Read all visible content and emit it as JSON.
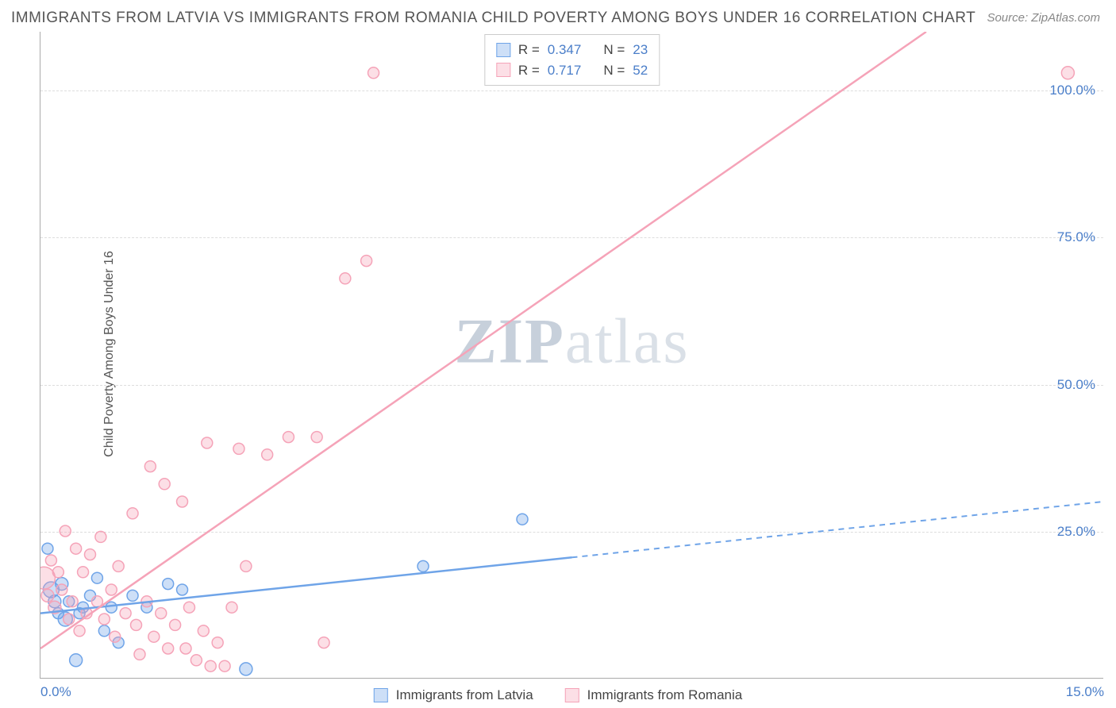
{
  "title": "IMMIGRANTS FROM LATVIA VS IMMIGRANTS FROM ROMANIA CHILD POVERTY AMONG BOYS UNDER 16 CORRELATION CHART",
  "source": "Source: ZipAtlas.com",
  "ylabel": "Child Poverty Among Boys Under 16",
  "watermark_zip": "ZIP",
  "watermark_atlas": "atlas",
  "chart": {
    "type": "scatter",
    "background_color": "#ffffff",
    "grid_color": "#dddddd",
    "axis_color": "#aaaaaa",
    "tick_color": "#4a7ec9",
    "xlim": [
      0,
      15
    ],
    "ylim": [
      0,
      110
    ],
    "xticks": [
      {
        "pos": 0,
        "label": "0.0%",
        "align": "left"
      },
      {
        "pos": 15,
        "label": "15.0%",
        "align": "right"
      }
    ],
    "yticks": [
      {
        "pos": 25,
        "label": "25.0%"
      },
      {
        "pos": 50,
        "label": "50.0%"
      },
      {
        "pos": 75,
        "label": "75.0%"
      },
      {
        "pos": 100,
        "label": "100.0%"
      }
    ],
    "grid_y": [
      25,
      50,
      75,
      100
    ],
    "series": [
      {
        "name": "Immigrants from Latvia",
        "color": "#6fa4e8",
        "fill": "rgba(111,164,232,0.35)",
        "R": "0.347",
        "N": "23",
        "trend": {
          "x1": 0,
          "y1": 11,
          "x2": 15,
          "y2": 30,
          "solid_until_x": 7.5
        },
        "points": [
          {
            "x": 0.1,
            "y": 22,
            "r": 7
          },
          {
            "x": 0.15,
            "y": 15,
            "r": 10
          },
          {
            "x": 0.2,
            "y": 13,
            "r": 8
          },
          {
            "x": 0.25,
            "y": 11,
            "r": 7
          },
          {
            "x": 0.3,
            "y": 16,
            "r": 8
          },
          {
            "x": 0.35,
            "y": 10,
            "r": 9
          },
          {
            "x": 0.4,
            "y": 13,
            "r": 7
          },
          {
            "x": 0.5,
            "y": 3,
            "r": 8
          },
          {
            "x": 0.55,
            "y": 11,
            "r": 7
          },
          {
            "x": 0.6,
            "y": 12,
            "r": 7
          },
          {
            "x": 0.7,
            "y": 14,
            "r": 7
          },
          {
            "x": 0.8,
            "y": 17,
            "r": 7
          },
          {
            "x": 0.9,
            "y": 8,
            "r": 7
          },
          {
            "x": 1.0,
            "y": 12,
            "r": 7
          },
          {
            "x": 1.1,
            "y": 6,
            "r": 7
          },
          {
            "x": 1.3,
            "y": 14,
            "r": 7
          },
          {
            "x": 1.5,
            "y": 12,
            "r": 7
          },
          {
            "x": 1.8,
            "y": 16,
            "r": 7
          },
          {
            "x": 2.0,
            "y": 15,
            "r": 7
          },
          {
            "x": 2.9,
            "y": 1.5,
            "r": 8
          },
          {
            "x": 5.4,
            "y": 19,
            "r": 7
          },
          {
            "x": 6.8,
            "y": 27,
            "r": 7
          }
        ]
      },
      {
        "name": "Immigrants from Romania",
        "color": "#f5a3b8",
        "fill": "rgba(245,163,184,0.35)",
        "R": "0.717",
        "N": "52",
        "trend": {
          "x1": 0,
          "y1": 5,
          "x2": 12.5,
          "y2": 110,
          "solid_until_x": 15
        },
        "points": [
          {
            "x": 0.05,
            "y": 17,
            "r": 14
          },
          {
            "x": 0.1,
            "y": 14,
            "r": 8
          },
          {
            "x": 0.15,
            "y": 20,
            "r": 7
          },
          {
            "x": 0.2,
            "y": 12,
            "r": 8
          },
          {
            "x": 0.25,
            "y": 18,
            "r": 7
          },
          {
            "x": 0.3,
            "y": 15,
            "r": 7
          },
          {
            "x": 0.35,
            "y": 25,
            "r": 7
          },
          {
            "x": 0.4,
            "y": 10,
            "r": 7
          },
          {
            "x": 0.45,
            "y": 13,
            "r": 7
          },
          {
            "x": 0.5,
            "y": 22,
            "r": 7
          },
          {
            "x": 0.55,
            "y": 8,
            "r": 7
          },
          {
            "x": 0.6,
            "y": 18,
            "r": 7
          },
          {
            "x": 0.65,
            "y": 11,
            "r": 7
          },
          {
            "x": 0.7,
            "y": 21,
            "r": 7
          },
          {
            "x": 0.8,
            "y": 13,
            "r": 7
          },
          {
            "x": 0.85,
            "y": 24,
            "r": 7
          },
          {
            "x": 0.9,
            "y": 10,
            "r": 7
          },
          {
            "x": 1.0,
            "y": 15,
            "r": 7
          },
          {
            "x": 1.05,
            "y": 7,
            "r": 7
          },
          {
            "x": 1.1,
            "y": 19,
            "r": 7
          },
          {
            "x": 1.2,
            "y": 11,
            "r": 7
          },
          {
            "x": 1.3,
            "y": 28,
            "r": 7
          },
          {
            "x": 1.35,
            "y": 9,
            "r": 7
          },
          {
            "x": 1.4,
            "y": 4,
            "r": 7
          },
          {
            "x": 1.5,
            "y": 13,
            "r": 7
          },
          {
            "x": 1.55,
            "y": 36,
            "r": 7
          },
          {
            "x": 1.6,
            "y": 7,
            "r": 7
          },
          {
            "x": 1.7,
            "y": 11,
            "r": 7
          },
          {
            "x": 1.75,
            "y": 33,
            "r": 7
          },
          {
            "x": 1.8,
            "y": 5,
            "r": 7
          },
          {
            "x": 1.9,
            "y": 9,
            "r": 7
          },
          {
            "x": 2.0,
            "y": 30,
            "r": 7
          },
          {
            "x": 2.05,
            "y": 5,
            "r": 7
          },
          {
            "x": 2.1,
            "y": 12,
            "r": 7
          },
          {
            "x": 2.2,
            "y": 3,
            "r": 7
          },
          {
            "x": 2.3,
            "y": 8,
            "r": 7
          },
          {
            "x": 2.35,
            "y": 40,
            "r": 7
          },
          {
            "x": 2.4,
            "y": 2,
            "r": 7
          },
          {
            "x": 2.5,
            "y": 6,
            "r": 7
          },
          {
            "x": 2.6,
            "y": 2,
            "r": 7
          },
          {
            "x": 2.7,
            "y": 12,
            "r": 7
          },
          {
            "x": 2.8,
            "y": 39,
            "r": 7
          },
          {
            "x": 2.9,
            "y": 19,
            "r": 7
          },
          {
            "x": 3.2,
            "y": 38,
            "r": 7
          },
          {
            "x": 3.5,
            "y": 41,
            "r": 7
          },
          {
            "x": 3.9,
            "y": 41,
            "r": 7
          },
          {
            "x": 4.0,
            "y": 6,
            "r": 7
          },
          {
            "x": 4.3,
            "y": 68,
            "r": 7
          },
          {
            "x": 4.6,
            "y": 71,
            "r": 7
          },
          {
            "x": 4.7,
            "y": 103,
            "r": 7
          },
          {
            "x": 14.5,
            "y": 103,
            "r": 8
          }
        ]
      }
    ],
    "legend_bottom": [
      {
        "label": "Immigrants from Latvia",
        "series": 0
      },
      {
        "label": "Immigrants from Romania",
        "series": 1
      }
    ]
  }
}
